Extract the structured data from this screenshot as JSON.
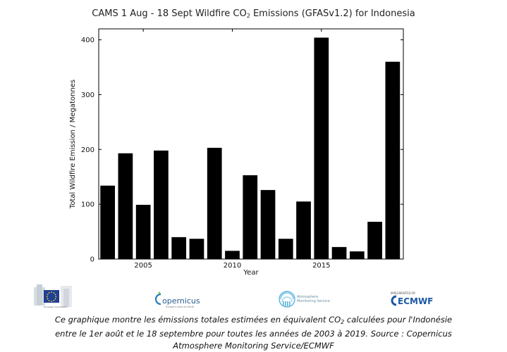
{
  "chart_data": {
    "type": "bar",
    "title_main": "CAMS 1 Aug - 18 Sept Wildfire CO",
    "title_sub": "2",
    "title_rest": " Emissions (GFASv1.2) for Indonesia",
    "xlabel": "Year",
    "ylabel": "Total Wildfire Emission / Megatonnes",
    "x": [
      2003,
      2004,
      2005,
      2006,
      2007,
      2008,
      2009,
      2010,
      2011,
      2012,
      2013,
      2014,
      2015,
      2016,
      2017,
      2018,
      2019
    ],
    "values": [
      134,
      193,
      99,
      198,
      40,
      37,
      203,
      15,
      153,
      126,
      37,
      105,
      404,
      22,
      14,
      68,
      360
    ],
    "xticks": [
      "2005",
      "2010",
      "2015"
    ],
    "xtick_values": [
      2005,
      2010,
      2015
    ],
    "yticks": [
      "0",
      "100",
      "200",
      "300",
      "400"
    ],
    "ytick_values": [
      0,
      100,
      200,
      300,
      400
    ],
    "xlim": [
      2002.5,
      2019.6
    ],
    "ylim": [
      0,
      420
    ],
    "bar_color": "#000000",
    "grid": false
  },
  "logos": {
    "eu_text": "European Commission",
    "copernicus": "opernicus",
    "copernicus_sub": "Europe's eyes on Earth",
    "atmosphere_line1": "Atmosphere",
    "atmosphere_line2": "Monitoring Service",
    "ecmwf_small": "IMPLEMENTED BY",
    "ecmwf": "ECMWF"
  },
  "caption": {
    "line1_a": "Ce graphique montre les émissions totales estimées en équivalent CO",
    "line1_sub": "2",
    "line1_b": " calculées pour l'Indonésie",
    "line2": "entre le 1er août et le 18 septembre pour toutes les années de 2003 à 2019. Source : Copernicus",
    "line3": "Atmosphere Monitoring Service/ECMWF"
  }
}
